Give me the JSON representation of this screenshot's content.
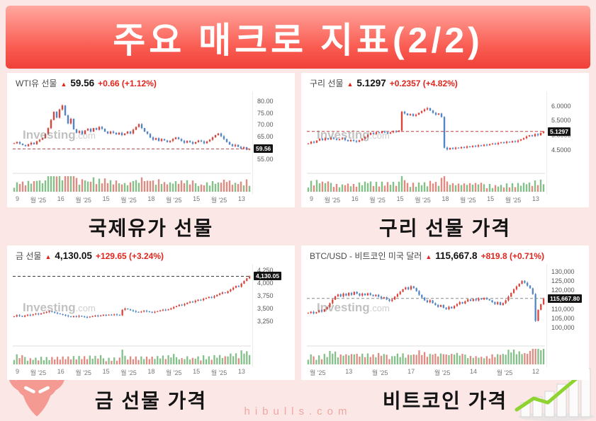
{
  "banner": {
    "title": "주요 매크로 지표(2/2)"
  },
  "watermark": {
    "bold": "Investing",
    "light": ".com"
  },
  "footer": {
    "site": "hibulls.com"
  },
  "chart_data": [
    {
      "type": "candlestick",
      "name": "WTI유 선물",
      "arrow": "▲",
      "last_price": "59.56",
      "change": "+0.66 (+1.12%)",
      "section_title": "국제유가 선물",
      "ylim": [
        51.5,
        82.5
      ],
      "yticks": [
        {
          "value": 80,
          "label": "80.00"
        },
        {
          "value": 75,
          "label": "75.00"
        },
        {
          "value": 70,
          "label": "70.00"
        },
        {
          "value": 65,
          "label": "65.00"
        },
        {
          "value": 55,
          "label": "55.00"
        }
      ],
      "badge": {
        "value": 59.56,
        "label": "59.56"
      },
      "dash_color": "#b05050",
      "x_labels": [
        "9",
        "월 '25",
        "16",
        "월 '25",
        "15",
        "월 '25",
        "18",
        "월 '25",
        "15",
        "월 '25",
        "13"
      ],
      "closes": [
        62.0,
        62.5,
        61.8,
        61.2,
        60.8,
        61.5,
        62.2,
        61.6,
        62.8,
        63.5,
        64.2,
        66.0,
        68.5,
        72.0,
        75.5,
        73.0,
        76.5,
        78.2,
        74.0,
        70.5,
        72.5,
        68.0,
        66.5,
        67.2,
        66.0,
        67.5,
        68.2,
        67.0,
        68.5,
        67.8,
        69.0,
        68.2,
        67.0,
        66.2,
        67.0,
        66.5,
        65.8,
        66.5,
        65.5,
        66.2,
        67.0,
        66.2,
        67.8,
        69.0,
        70.2,
        68.5,
        67.0,
        66.0,
        64.5,
        63.5,
        64.2,
        63.0,
        63.8,
        63.2,
        62.5,
        63.0,
        63.8,
        64.5,
        63.8,
        63.0,
        62.2,
        63.0,
        62.5,
        61.8,
        62.5,
        63.2,
        62.8,
        62.0,
        62.8,
        63.5,
        64.5,
        65.5,
        66.2,
        65.0,
        63.8,
        62.5,
        61.5,
        60.8,
        61.3,
        60.5,
        59.8,
        60.3,
        59.2,
        59.56
      ]
    },
    {
      "type": "candlestick",
      "name": "구리 선물",
      "arrow": "▲",
      "last_price": "5.1297",
      "change": "+0.2357 (+4.82%)",
      "section_title": "구리 선물 가격",
      "ylim": [
        3.9,
        6.35
      ],
      "yticks": [
        {
          "value": 6.0,
          "label": "6.0000"
        },
        {
          "value": 5.5,
          "label": "5.5000"
        },
        {
          "value": 5.0,
          "label": "5.0000"
        },
        {
          "value": 4.5,
          "label": "4.5000"
        }
      ],
      "badge": {
        "value": 5.1297,
        "label": "5.1297"
      },
      "dash_color": "#c03b3b",
      "x_labels": [
        "9",
        "월 '25",
        "16",
        "월 '25",
        "15",
        "월 '25",
        "18",
        "월 '25",
        "15",
        "월 '25",
        "13"
      ],
      "closes": [
        4.72,
        4.78,
        4.75,
        4.82,
        4.88,
        4.84,
        4.9,
        4.86,
        4.92,
        4.88,
        4.84,
        4.87,
        4.9,
        4.84,
        4.8,
        4.84,
        4.81,
        4.78,
        4.83,
        4.88,
        4.94,
        5.02,
        5.08,
        5.05,
        5.1,
        5.08,
        5.13,
        5.1,
        5.06,
        5.1,
        5.14,
        5.12,
        5.16,
        5.8,
        5.74,
        5.68,
        5.72,
        5.66,
        5.7,
        5.76,
        5.82,
        5.88,
        5.92,
        5.84,
        5.76,
        5.7,
        5.74,
        5.62,
        4.58,
        4.52,
        4.57,
        4.54,
        4.58,
        4.56,
        4.6,
        4.58,
        4.62,
        4.6,
        4.64,
        4.62,
        4.66,
        4.64,
        4.68,
        4.66,
        4.7,
        4.72,
        4.7,
        4.74,
        4.76,
        4.74,
        4.78,
        4.76,
        4.8,
        4.78,
        4.82,
        4.86,
        4.9,
        4.96,
        5.0,
        4.97,
        5.04,
        5.0,
        5.08,
        5.1297
      ]
    },
    {
      "type": "candlestick",
      "name": "금 선물",
      "arrow": "▲",
      "last_price": "4,130.05",
      "change": "+129.65 (+3.24%)",
      "section_title": "금 선물 가격",
      "ylim": [
        2870,
        4290
      ],
      "yticks": [
        {
          "value": 4250,
          "label": "4,250"
        },
        {
          "value": 4000,
          "label": "4,000"
        },
        {
          "value": 3750,
          "label": "3,750"
        },
        {
          "value": 3500,
          "label": "3,500"
        },
        {
          "value": 3250,
          "label": "3,250"
        }
      ],
      "badge": {
        "value": 4130.05,
        "label": "4,130.05"
      },
      "dash_color": "#3a3a3a",
      "x_labels": [
        "9",
        "월 '25",
        "16",
        "월 '25",
        "15",
        "월 '25",
        "18",
        "월 '25",
        "15",
        "월 '25",
        "13"
      ],
      "closes": [
        3340,
        3365,
        3350,
        3335,
        3358,
        3372,
        3362,
        3382,
        3395,
        3382,
        3402,
        3415,
        3430,
        3442,
        3428,
        3412,
        3398,
        3385,
        3370,
        3355,
        3342,
        3330,
        3345,
        3336,
        3350,
        3340,
        3330,
        3322,
        3336,
        3346,
        3355,
        3346,
        3360,
        3370,
        3362,
        3375,
        3366,
        3380,
        3372,
        3362,
        3470,
        3495,
        3480,
        3462,
        3445,
        3430,
        3422,
        3436,
        3450,
        3440,
        3428,
        3420,
        3432,
        3444,
        3458,
        3472,
        3465,
        3480,
        3500,
        3525,
        3545,
        3570,
        3560,
        3585,
        3610,
        3630,
        3622,
        3648,
        3668,
        3660,
        3688,
        3705,
        3722,
        3712,
        3738,
        3765,
        3790,
        3812,
        3800,
        3835,
        3870,
        3905,
        3940,
        3925,
        3985,
        4040,
        4090,
        4130.05
      ]
    },
    {
      "type": "candlestick",
      "name": "BTC/USD - 비트코인 미국 달러",
      "arrow": "▲",
      "last_price": "115,667.8",
      "change": "+819.8 (+0.71%)",
      "section_title": "비트코인 가격",
      "ylim": [
        93000,
        132000
      ],
      "yticks": [
        {
          "value": 130000,
          "label": "130,000"
        },
        {
          "value": 125000,
          "label": "125,000"
        },
        {
          "value": 120000,
          "label": "120,000"
        },
        {
          "value": 110000,
          "label": "110,000"
        },
        {
          "value": 105000,
          "label": "105,000"
        },
        {
          "value": 100000,
          "label": "100,000"
        }
      ],
      "badge": {
        "value": 115667.8,
        "label": "115,667.80"
      },
      "dash_color": "#888888",
      "x_labels": [
        "월 '25",
        "13",
        "월 '25",
        "17",
        "월 '25",
        "14",
        "월 '25",
        "12"
      ],
      "closes": [
        107800,
        108400,
        107600,
        108200,
        109200,
        108500,
        109800,
        111000,
        113000,
        115000,
        116800,
        117800,
        116800,
        118200,
        117200,
        118600,
        117600,
        119200,
        118200,
        117200,
        118200,
        117400,
        118400,
        117600,
        116900,
        117600,
        116600,
        115600,
        116300,
        115100,
        114300,
        115100,
        116600,
        118000,
        119200,
        120600,
        121600,
        120600,
        122200,
        121200,
        119600,
        117600,
        116100,
        114600,
        113600,
        114600,
        113100,
        112100,
        111100,
        112100,
        110600,
        109900,
        111100,
        110300,
        111600,
        112600,
        113600,
        112900,
        114100,
        115100,
        114300,
        115300,
        114600,
        115600,
        115100,
        115900,
        115300,
        114600,
        113600,
        112600,
        113600,
        112100,
        113100,
        114600,
        116600,
        118600,
        120600,
        122100,
        123600,
        125100,
        124100,
        122600,
        121100,
        118000,
        103500,
        109500,
        112500,
        115667.8
      ]
    }
  ]
}
